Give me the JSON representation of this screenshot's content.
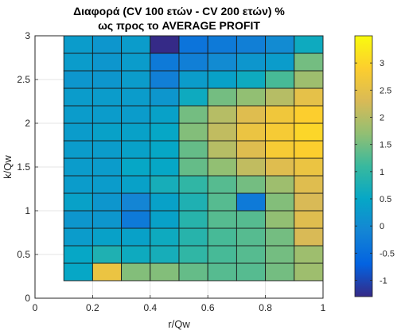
{
  "chart_data": {
    "type": "heatmap",
    "title_lines": [
      "Διαφορά (CV 100 ετών - CV 200 ετών) %",
      "ως προς το AVERAGE PROFIT"
    ],
    "xlabel": "r/Qw",
    "ylabel": "k/Qw",
    "xlim": [
      0,
      1
    ],
    "ylim": [
      0,
      3
    ],
    "xticks": [
      "0",
      "0.2",
      "0.4",
      "0.6",
      "0.8",
      "1"
    ],
    "yticks": [
      "0",
      "0.5",
      "1",
      "1.5",
      "2",
      "2.5",
      "3"
    ],
    "grid": true,
    "colormap": "parula",
    "clim": [
      -1.3,
      3.5
    ],
    "colorbar_ticks": [
      "-1",
      "-0.5",
      "0",
      "0.5",
      "1",
      "1.5",
      "2",
      "2.5",
      "3"
    ],
    "x_edges": [
      0.1,
      0.2,
      0.3,
      0.4,
      0.5,
      0.6,
      0.7,
      0.8,
      0.9,
      1.0
    ],
    "y_edges": [
      0.2,
      0.4,
      0.6,
      0.8,
      1.0,
      1.2,
      1.4,
      1.6,
      1.8,
      2.0,
      2.2,
      2.4,
      2.6,
      2.8,
      3.0
    ],
    "rows_bottom_to_top": [
      [
        0.5,
        2.6,
        1.6,
        1.6,
        1.4,
        1.3,
        1.3,
        1.5,
        1.8
      ],
      [
        0.5,
        0.8,
        0.6,
        0.7,
        1.0,
        1.2,
        1.3,
        1.5,
        1.8
      ],
      [
        0.3,
        0.4,
        0.4,
        0.6,
        0.9,
        1.2,
        1.3,
        1.5,
        2.3
      ],
      [
        0.2,
        0.2,
        -0.3,
        0.4,
        0.9,
        1.3,
        1.3,
        1.7,
        2.4
      ],
      [
        0.4,
        0.2,
        -0.1,
        0.4,
        0.8,
        1.3,
        -0.3,
        1.6,
        2.3
      ],
      [
        0.3,
        0.3,
        0.4,
        0.7,
        1.0,
        1.3,
        1.5,
        1.8,
        2.4
      ],
      [
        0.3,
        0.3,
        0.5,
        0.5,
        1.4,
        1.7,
        2.1,
        2.4,
        2.6
      ],
      [
        0.3,
        0.3,
        0.4,
        0.5,
        1.4,
        2.0,
        2.4,
        2.8,
        2.9
      ],
      [
        0.3,
        0.4,
        0.4,
        0.5,
        1.6,
        2.1,
        2.6,
        2.8,
        3.0
      ],
      [
        0.3,
        0.3,
        0.3,
        0.4,
        1.5,
        2.0,
        2.4,
        2.7,
        2.9
      ],
      [
        0.3,
        0.3,
        0.3,
        0.2,
        0.6,
        1.5,
        1.7,
        2.0,
        2.5
      ],
      [
        0.2,
        0.2,
        0.3,
        -0.2,
        0.3,
        0.4,
        0.6,
        1.2,
        1.8
      ],
      [
        0.3,
        0.2,
        0.3,
        -0.3,
        -0.2,
        0.0,
        0.2,
        0.3,
        1.5
      ],
      [
        0.3,
        0.2,
        0.3,
        -1.3,
        -0.4,
        -0.3,
        -0.2,
        0.0,
        0.6
      ]
    ]
  }
}
